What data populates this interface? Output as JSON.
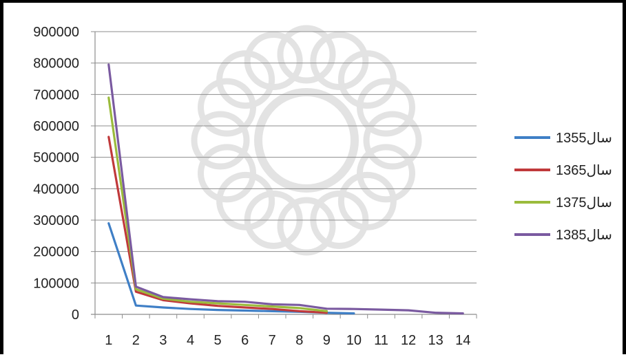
{
  "chart_data": {
    "type": "line",
    "title": "",
    "xlabel": "",
    "ylabel": "",
    "x": [
      1,
      2,
      3,
      4,
      5,
      6,
      7,
      8,
      9,
      10,
      11,
      12,
      13,
      14
    ],
    "ylim": [
      0,
      900000
    ],
    "yticks": [
      "0",
      "100000",
      "200000",
      "300000",
      "400000",
      "500000",
      "600000",
      "700000",
      "800000",
      "900000"
    ],
    "xticks": [
      "1",
      "2",
      "3",
      "4",
      "5",
      "6",
      "7",
      "8",
      "9",
      "10",
      "11",
      "12",
      "13",
      "14"
    ],
    "grid": true,
    "legend_position": "right",
    "series": [
      {
        "name": "سال1355",
        "color": "#3f7fc6",
        "values": [
          290000,
          28000,
          22000,
          17000,
          14000,
          12000,
          10000,
          8000,
          5000,
          3000,
          null,
          null,
          null,
          null
        ]
      },
      {
        "name": "سال1365",
        "color": "#c0393b",
        "values": [
          565000,
          72000,
          45000,
          35000,
          27000,
          22000,
          17000,
          10000,
          5000,
          null,
          null,
          null,
          null,
          null
        ]
      },
      {
        "name": "سال1375",
        "color": "#9bbb3c",
        "values": [
          690000,
          80000,
          50000,
          40000,
          35000,
          30000,
          25000,
          20000,
          10000,
          null,
          null,
          null,
          null,
          null
        ]
      },
      {
        "name": "سال1385",
        "color": "#7a5aa0",
        "values": [
          795000,
          88000,
          55000,
          48000,
          42000,
          40000,
          32000,
          30000,
          18000,
          17000,
          15000,
          13000,
          5000,
          3000
        ]
      }
    ]
  }
}
